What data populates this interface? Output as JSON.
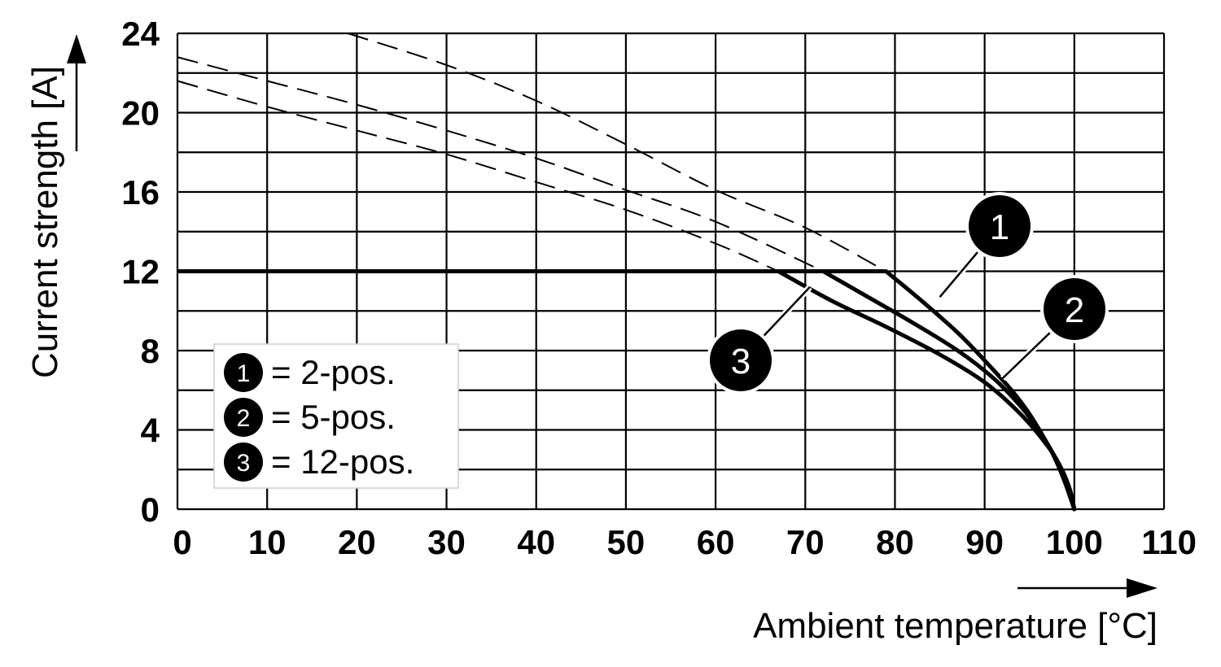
{
  "chart_data": {
    "type": "line",
    "xlabel": "Ambient temperature [°C]",
    "ylabel": "Current strength [A]",
    "xlim": [
      0,
      110
    ],
    "ylim": [
      0,
      24
    ],
    "x_ticks": [
      0,
      10,
      20,
      30,
      40,
      50,
      60,
      70,
      80,
      90,
      100,
      110
    ],
    "y_ticks": [
      0,
      4,
      8,
      12,
      16,
      20,
      24
    ],
    "y_tick_labels": [
      "0",
      "4",
      "8",
      "12",
      "16",
      "20",
      "24"
    ],
    "x_tick_labels": [
      "0",
      "10",
      "20",
      "30",
      "40",
      "50",
      "60",
      "70",
      "80",
      "90",
      "100",
      "110"
    ],
    "grid": true,
    "legend_position": "bottom-left",
    "series": [
      {
        "name": "2-pos.",
        "marker": "1",
        "dashed_x": [
          19,
          30,
          40,
          50,
          60,
          70,
          79
        ],
        "dashed_y": [
          24,
          22.4,
          20.6,
          18.4,
          16.1,
          14.2,
          12
        ],
        "x": [
          0,
          79,
          83,
          87,
          90,
          93,
          95,
          97,
          98,
          99,
          100
        ],
        "y": [
          12,
          12,
          10.5,
          8.9,
          7.5,
          6.0,
          4.8,
          3.3,
          2.4,
          1.3,
          0
        ]
      },
      {
        "name": "5-pos.",
        "marker": "2",
        "dashed_x": [
          0,
          10,
          20,
          30,
          40,
          50,
          60,
          72
        ],
        "dashed_y": [
          22.8,
          21.6,
          20.4,
          19.1,
          17.7,
          16.1,
          14.5,
          12
        ],
        "x": [
          0,
          72,
          77,
          82,
          87,
          91,
          94,
          96,
          98,
          99,
          100
        ],
        "y": [
          12,
          12,
          10.7,
          9.4,
          8.0,
          6.6,
          5.2,
          4.0,
          2.5,
          1.4,
          0
        ]
      },
      {
        "name": "12-pos.",
        "marker": "3",
        "dashed_x": [
          0,
          10,
          20,
          30,
          40,
          50,
          60,
          67
        ],
        "dashed_y": [
          21.6,
          20.3,
          19.1,
          17.9,
          16.5,
          15.1,
          13.4,
          12
        ],
        "x": [
          0,
          67,
          73,
          79,
          85,
          90,
          94,
          97,
          98.5,
          99.5,
          100
        ],
        "y": [
          12,
          12,
          10.5,
          9.2,
          7.8,
          6.4,
          4.8,
          3.2,
          2.1,
          1.0,
          0
        ]
      }
    ],
    "legend": [
      {
        "marker": "1",
        "text": "= 2-pos."
      },
      {
        "marker": "2",
        "text": "= 5-pos."
      },
      {
        "marker": "3",
        "text": "= 12-pos."
      }
    ],
    "callouts": [
      {
        "marker": "1",
        "at": [
          85,
          10.7
        ]
      },
      {
        "marker": "2",
        "at": [
          92,
          6.6
        ]
      },
      {
        "marker": "3",
        "at": [
          70.5,
          11.2
        ]
      }
    ]
  }
}
